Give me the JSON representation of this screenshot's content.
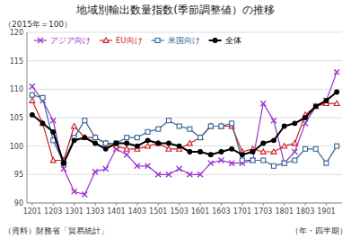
{
  "chart_data": {
    "type": "line",
    "title": "地域別輸出数量指数(季節調整値）の推移",
    "subtitle": "（2015年＝100）",
    "x_label": "（年・四半期）",
    "annotations": [
      "（資料）財務省「貿易統計」"
    ],
    "categories": [
      "1201",
      null,
      "1203",
      null,
      "1301",
      null,
      "1303",
      null,
      "1401",
      null,
      "1403",
      null,
      "1501",
      null,
      "1503",
      null,
      "1601",
      null,
      "1603",
      null,
      "1701",
      null,
      "1703",
      null,
      "1801",
      null,
      "1803",
      null,
      "1901",
      null
    ],
    "ylim": [
      90,
      120
    ],
    "yticks": [
      90,
      95,
      100,
      105,
      110,
      115,
      120
    ],
    "grid": true,
    "legend": "upper left",
    "series": [
      {
        "name": "アジア向け",
        "color": "#9933cc",
        "marker": "x",
        "values": [
          110.5,
          108.0,
          104.5,
          96.0,
          92.0,
          91.5,
          95.5,
          96.0,
          99.5,
          98.5,
          96.5,
          96.5,
          95.0,
          95.0,
          96.0,
          95.0,
          95.0,
          97.0,
          97.5,
          97.0,
          97.0,
          97.5,
          107.5,
          104.5,
          97.0,
          99.0,
          104.0,
          107.0,
          108.0,
          113.0
        ]
      },
      {
        "name": "EU向け",
        "color": "#cc2222",
        "marker": "triangle-open",
        "values": [
          108.0,
          104.0,
          97.5,
          97.5,
          103.5,
          101.5,
          101.5,
          100.5,
          100.0,
          99.5,
          99.5,
          100.0,
          100.5,
          99.5,
          99.5,
          100.5,
          101.5,
          103.5,
          103.5,
          103.5,
          99.0,
          99.5,
          99.0,
          99.0,
          100.0,
          100.5,
          105.5,
          107.0,
          107.5,
          107.5
        ]
      },
      {
        "name": "米国向け",
        "color": "#336699",
        "marker": "square-open",
        "values": [
          109.0,
          108.5,
          101.0,
          97.0,
          101.5,
          104.5,
          101.5,
          100.5,
          100.5,
          101.5,
          101.5,
          102.5,
          103.0,
          104.5,
          103.5,
          103.0,
          101.5,
          103.5,
          103.5,
          104.0,
          97.5,
          97.5,
          97.5,
          96.5,
          97.0,
          97.5,
          99.5,
          99.5,
          97.0,
          100.0
        ]
      },
      {
        "name": "全体",
        "color": "#000000",
        "marker": "circle",
        "values": [
          105.5,
          104.0,
          102.5,
          97.0,
          101.0,
          101.5,
          100.5,
          99.5,
          100.5,
          100.5,
          100.0,
          101.0,
          100.5,
          100.5,
          100.0,
          99.0,
          99.0,
          98.5,
          99.0,
          99.5,
          98.5,
          99.0,
          100.5,
          101.0,
          103.5,
          104.0,
          105.0,
          107.0,
          108.0,
          109.5
        ]
      }
    ]
  }
}
